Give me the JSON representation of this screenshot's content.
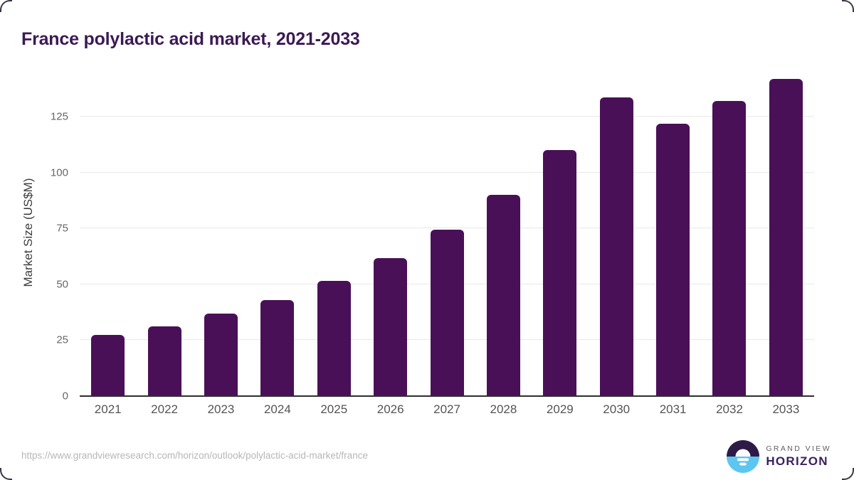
{
  "title": "France polylactic acid market, 2021-2033",
  "chart_data": {
    "type": "bar",
    "title": "France polylactic acid market, 2021-2033",
    "categories": [
      "2021",
      "2022",
      "2023",
      "2024",
      "2025",
      "2026",
      "2027",
      "2028",
      "2029",
      "2030",
      "2031",
      "2032",
      "2033"
    ],
    "values": [
      27.4,
      31.3,
      36.8,
      43.0,
      51.5,
      61.6,
      74.5,
      90.0,
      110.0,
      133.5,
      121.7,
      132.0,
      142.0
    ],
    "xlabel": "",
    "ylabel": "Market Size (US$M)",
    "ylim": [
      0,
      146
    ],
    "yticks": [
      0,
      25,
      50,
      75,
      100,
      125
    ],
    "grid": true,
    "legend_position": "none",
    "bar_color": "#4a1057"
  },
  "colors": {
    "title": "#3b1a54",
    "bar": "#4a1057",
    "gridline": "#e9e9e9",
    "axis_line": "#2e2e2e",
    "brand_blue": "#5cc6f1",
    "brand_dark": "#2d1a47",
    "brand_purple": "#3a2060"
  },
  "footer": {
    "source_url": "https://www.grandviewresearch.com/horizon/outlook/polylactic-acid-market/france",
    "brand": {
      "line1": "GRAND VIEW",
      "line2": "HORIZON"
    }
  }
}
